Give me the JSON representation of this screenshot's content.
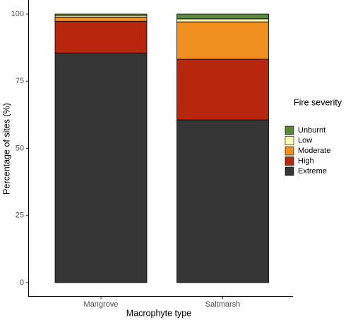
{
  "chart_data": {
    "type": "stacked-bar",
    "x_label": "Macrophyte type",
    "y_label": "Percentage of sites (%)",
    "categories": [
      "Mangrove",
      "Saltmarsh"
    ],
    "legend_title": "Fire severity",
    "series": [
      {
        "name": "Unburnt",
        "color": "#5b8a3c",
        "values": [
          0.5,
          1.8
        ]
      },
      {
        "name": "Low",
        "color": "#ffffb3",
        "values": [
          0.6,
          1.1
        ]
      },
      {
        "name": "Moderate",
        "color": "#ee8f1f",
        "values": [
          1.6,
          13.9
        ]
      },
      {
        "name": "High",
        "color": "#b9260e",
        "values": [
          11.8,
          22.6
        ]
      },
      {
        "name": "Extreme",
        "color": "#363636",
        "values": [
          85.5,
          60.6
        ]
      }
    ],
    "ylim": [
      -5,
      105
    ],
    "yticks": [
      0,
      25,
      50,
      75,
      100
    ]
  }
}
